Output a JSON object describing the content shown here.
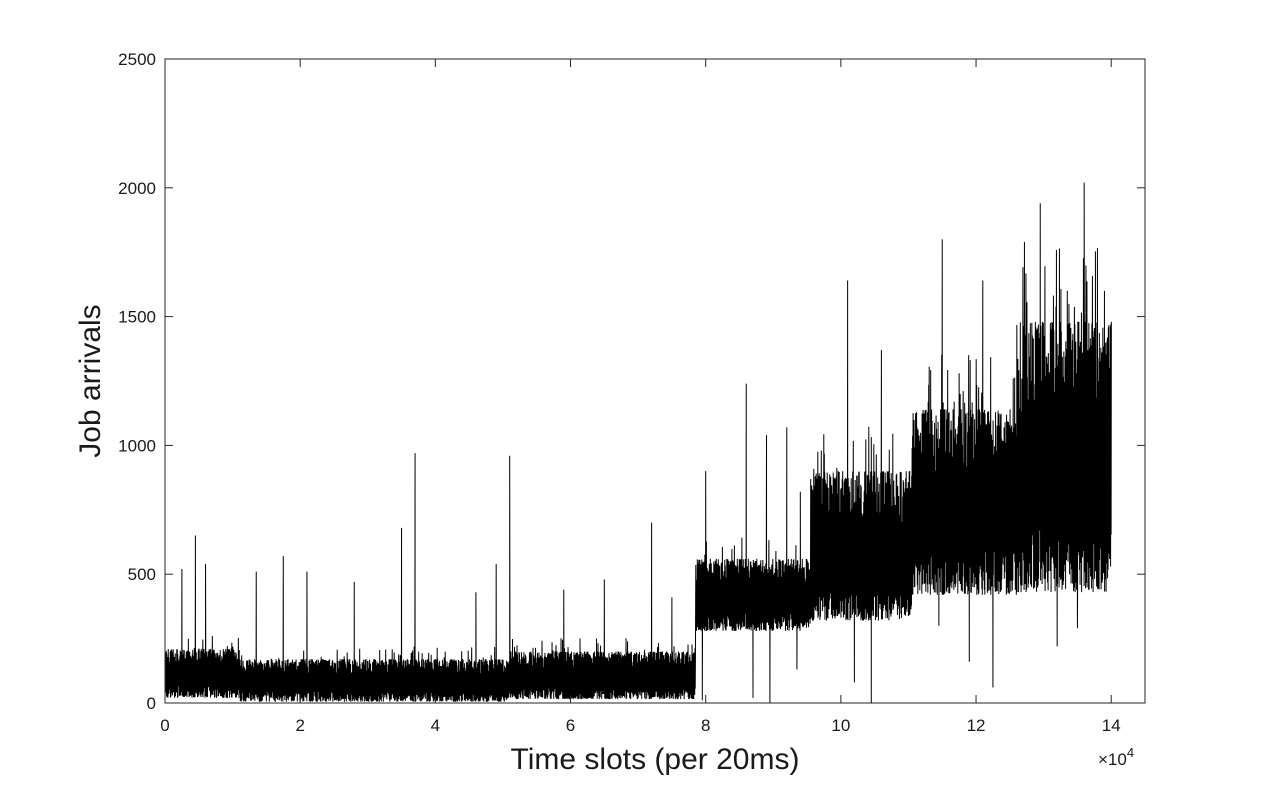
{
  "chart_data": {
    "type": "line",
    "title": "",
    "xlabel": "Time slots (per 20ms)",
    "ylabel": "Job arrivals",
    "x_exponent_label": "×10",
    "x_exponent_power": "4",
    "xlim": [
      0,
      14.5
    ],
    "ylim": [
      0,
      2500
    ],
    "x_unit_multiplier": 10000,
    "xticks": [
      0,
      2,
      4,
      6,
      8,
      10,
      12,
      14
    ],
    "xtick_labels": [
      "0",
      "2",
      "4",
      "6",
      "8",
      "10",
      "12",
      "14"
    ],
    "yticks": [
      0,
      500,
      1000,
      1500,
      2000,
      2500
    ],
    "ytick_labels": [
      "0",
      "500",
      "1000",
      "1500",
      "2000",
      "2500"
    ],
    "grid": false,
    "line_color": "#000000",
    "series": [
      {
        "regimes": [
          {
            "x_start": 0.0,
            "x_end": 1.1,
            "low": 20,
            "high": 210
          },
          {
            "x_start": 1.1,
            "x_end": 5.1,
            "low": 5,
            "high": 170
          },
          {
            "x_start": 5.1,
            "x_end": 7.85,
            "low": 15,
            "high": 200
          },
          {
            "x_start": 7.85,
            "x_end": 9.55,
            "low": 280,
            "high": 560
          },
          {
            "x_start": 9.55,
            "x_end": 11.05,
            "low": 320,
            "high": 900
          },
          {
            "x_start": 11.05,
            "x_end": 12.6,
            "low": 420,
            "high": 1140
          },
          {
            "x_start": 12.6,
            "x_end": 14.0,
            "low": 430,
            "high": 1480
          }
        ],
        "up_spikes": [
          [
            0.25,
            520
          ],
          [
            0.45,
            650
          ],
          [
            0.6,
            540
          ],
          [
            1.35,
            510
          ],
          [
            1.75,
            570
          ],
          [
            2.1,
            510
          ],
          [
            2.8,
            470
          ],
          [
            3.5,
            680
          ],
          [
            3.7,
            970
          ],
          [
            4.6,
            430
          ],
          [
            4.9,
            540
          ],
          [
            5.1,
            960
          ],
          [
            5.9,
            440
          ],
          [
            6.5,
            480
          ],
          [
            7.2,
            700
          ],
          [
            7.5,
            410
          ],
          [
            8.0,
            900
          ],
          [
            8.6,
            1240
          ],
          [
            8.9,
            1040
          ],
          [
            9.2,
            1070
          ],
          [
            9.4,
            820
          ],
          [
            10.1,
            1640
          ],
          [
            10.6,
            1370
          ],
          [
            11.5,
            1800
          ],
          [
            11.75,
            1280
          ],
          [
            12.1,
            1640
          ],
          [
            12.55,
            1260
          ],
          [
            12.95,
            1940
          ],
          [
            13.35,
            1600
          ],
          [
            13.6,
            2020
          ],
          [
            13.9,
            1600
          ]
        ],
        "down_spikes": [
          [
            7.95,
            10
          ],
          [
            8.7,
            20
          ],
          [
            8.95,
            0
          ],
          [
            9.35,
            130
          ],
          [
            10.2,
            80
          ],
          [
            10.45,
            0
          ],
          [
            11.45,
            300
          ],
          [
            11.9,
            160
          ],
          [
            12.25,
            60
          ],
          [
            13.2,
            220
          ],
          [
            13.5,
            290
          ]
        ]
      }
    ]
  }
}
